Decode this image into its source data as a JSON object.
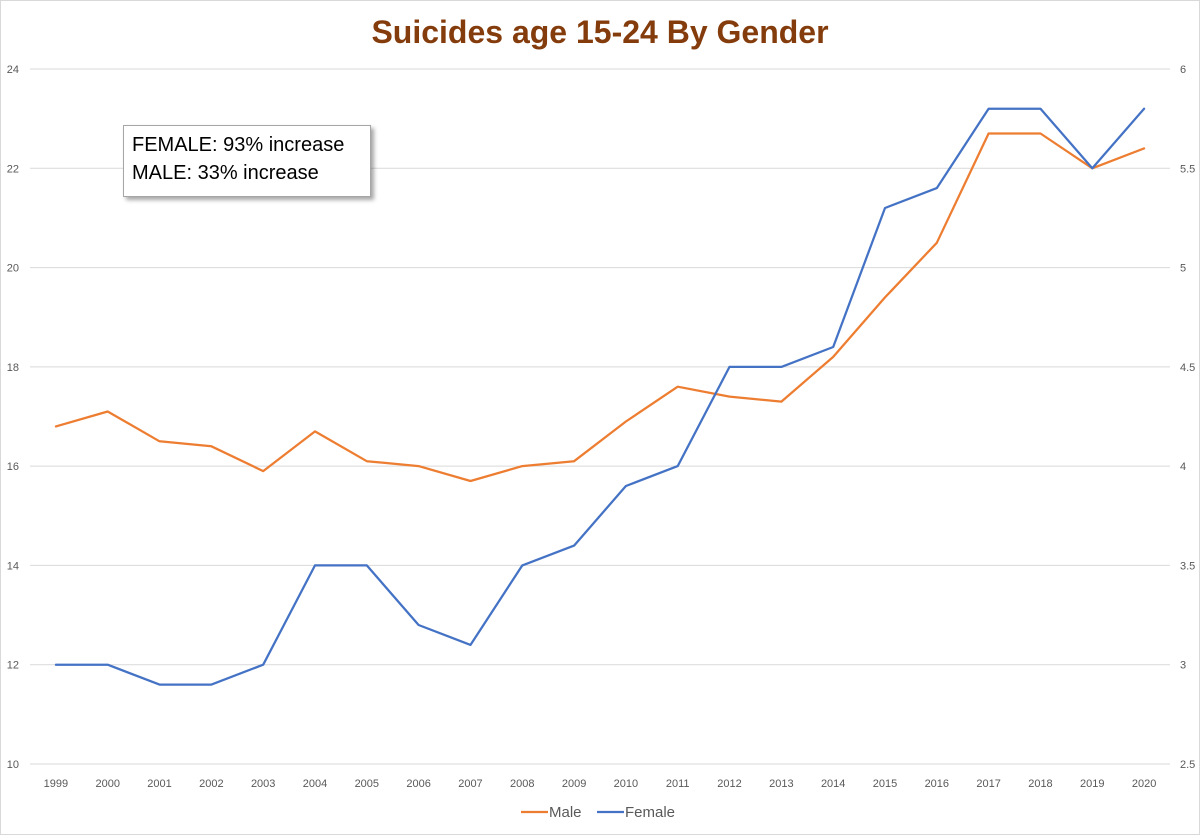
{
  "chart_data": {
    "type": "line",
    "title": "Suicides age 15-24 By Gender",
    "categories": [
      "1999",
      "2000",
      "2001",
      "2002",
      "2003",
      "2004",
      "2005",
      "2006",
      "2007",
      "2008",
      "2009",
      "2010",
      "2011",
      "2012",
      "2013",
      "2014",
      "2015",
      "2016",
      "2017",
      "2018",
      "2019",
      "2020"
    ],
    "series": [
      {
        "name": "Male",
        "axis": "left",
        "color": "#ed7d31",
        "values": [
          16.8,
          17.1,
          16.5,
          16.4,
          15.9,
          16.7,
          16.1,
          16.0,
          15.7,
          16.0,
          16.1,
          16.9,
          17.6,
          17.4,
          17.3,
          18.2,
          19.4,
          20.5,
          22.7,
          22.7,
          22.0,
          22.4
        ]
      },
      {
        "name": "Female",
        "axis": "right",
        "color": "#4472c4",
        "values": [
          3.0,
          3.0,
          2.9,
          2.9,
          3.0,
          3.5,
          3.5,
          3.2,
          3.1,
          3.5,
          3.6,
          3.9,
          4.0,
          4.5,
          4.5,
          4.6,
          5.3,
          5.4,
          5.8,
          5.8,
          5.5,
          5.8
        ]
      }
    ],
    "y_left": {
      "min": 10,
      "max": 24,
      "step": 2,
      "ticks": [
        "10",
        "12",
        "14",
        "16",
        "18",
        "20",
        "22",
        "24"
      ]
    },
    "y_right": {
      "min": 2.5,
      "max": 6,
      "step": 0.5,
      "ticks": [
        "2.5",
        "3",
        "3.5",
        "4",
        "4.5",
        "5",
        "5.5",
        "6"
      ]
    },
    "gridlines": true,
    "legend_position": "bottom",
    "annotation": {
      "line1": "FEMALE: 93% increase",
      "line2": "MALE: 33% increase"
    }
  }
}
